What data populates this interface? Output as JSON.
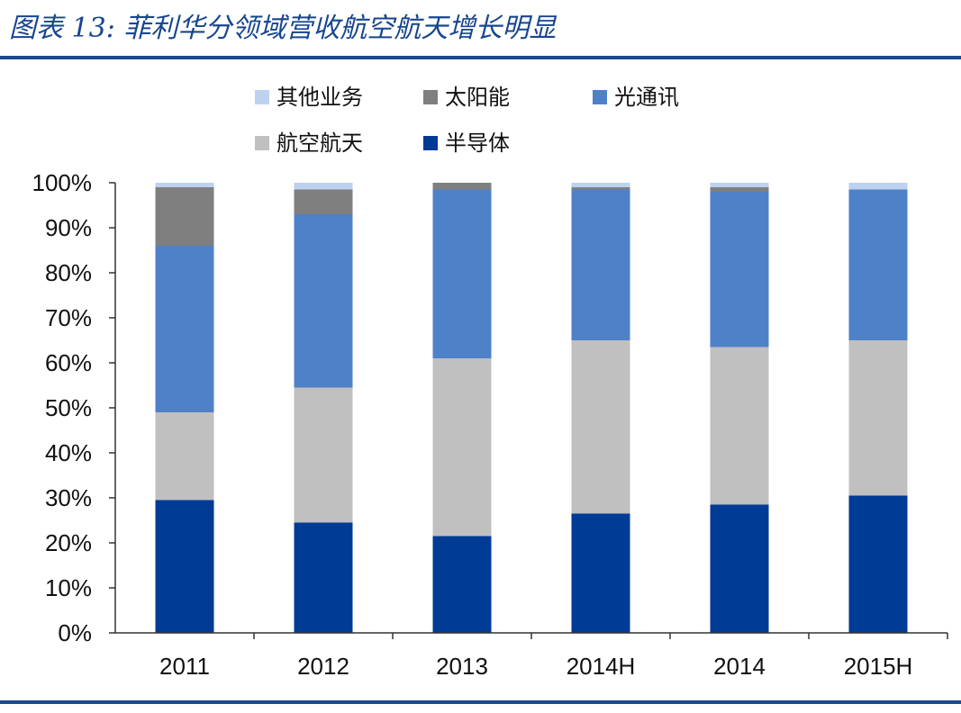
{
  "figure": {
    "title": "图表 13:  菲利华分领域营收航空航天增长明显"
  },
  "chart_data": {
    "type": "bar",
    "stacked": true,
    "categories": [
      "2011",
      "2012",
      "2013",
      "2014H",
      "2014",
      "2015H"
    ],
    "series": [
      {
        "name": "半导体",
        "color": "#003b96",
        "values": [
          29.5,
          24.5,
          21.5,
          26.5,
          28.5,
          30.5
        ]
      },
      {
        "name": "航空航天",
        "color": "#c0c0c0",
        "values": [
          19.5,
          30.0,
          39.5,
          38.5,
          35.0,
          34.5
        ]
      },
      {
        "name": "光通讯",
        "color": "#4f81c9",
        "values": [
          37.0,
          38.5,
          37.5,
          33.5,
          34.5,
          33.5
        ]
      },
      {
        "name": "太阳能",
        "color": "#7f7f7f",
        "values": [
          13.0,
          5.5,
          1.5,
          0.5,
          1.0,
          0.0
        ]
      },
      {
        "name": "其他业务",
        "color": "#bcd2ee",
        "values": [
          1.0,
          1.5,
          0.0,
          1.0,
          1.0,
          1.5
        ]
      }
    ],
    "ylim": [
      0,
      100
    ],
    "yticks": [
      "0%",
      "10%",
      "20%",
      "30%",
      "40%",
      "50%",
      "60%",
      "70%",
      "80%",
      "90%",
      "100%"
    ],
    "legend": {
      "position": "top",
      "order": [
        "其他业务",
        "太阳能",
        "光通讯",
        "航空航天",
        "半导体"
      ]
    },
    "grid": false
  }
}
